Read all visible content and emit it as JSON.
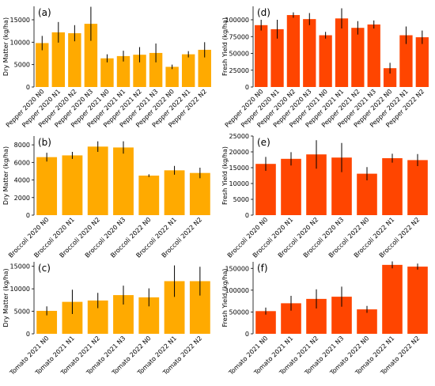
{
  "colors": {
    "dry": "#FFAA00",
    "fresh": "#FF4500",
    "error": "#000000",
    "axis": "#000000"
  },
  "chart_data": [
    {
      "panel": "(a)",
      "type": "bar",
      "ylabel": "Dry Matter (kg/ha)",
      "ylim": [
        0,
        18000
      ],
      "yticks": [
        0,
        5000,
        10000,
        15000
      ],
      "color": "dry",
      "categories": [
        "Pepper 2020 N0",
        "Pepper 2020 N1",
        "Pepper 2020 N2",
        "Pepper 2020 N3",
        "Pepper 2021 N0",
        "Pepper 2021 N1",
        "Pepper 2021 N2",
        "Pepper 2021 N3",
        "Pepper 2022 N0",
        "Pepper 2022 N1",
        "Pepper 2022 N2"
      ],
      "values": [
        9800,
        12200,
        12000,
        14100,
        6400,
        6900,
        7200,
        7600,
        4500,
        7300,
        8300
      ],
      "errors": [
        1600,
        2300,
        1800,
        3800,
        900,
        1200,
        1700,
        2100,
        500,
        700,
        1700
      ]
    },
    {
      "panel": "(d)",
      "type": "bar",
      "ylabel": "Fresh Yield (kg/ha)",
      "ylim": [
        0,
        120000
      ],
      "yticks": [
        0,
        25000,
        50000,
        75000,
        100000
      ],
      "color": "fresh",
      "categories": [
        "Pepper 2020 N0",
        "Pepper 2020 N1",
        "Pepper 2020 N2",
        "Pepper 2020 N3",
        "Pepper 2021 N0",
        "Pepper 2021 N1",
        "Pepper 2021 N2",
        "Pepper 2021 N3",
        "Pepper 2022 N0",
        "Pepper 2022 N1",
        "Pepper 2022 N2"
      ],
      "values": [
        92000,
        86000,
        107000,
        101000,
        77000,
        102000,
        88000,
        93000,
        28000,
        77000,
        74000
      ],
      "errors": [
        8000,
        14000,
        4000,
        9000,
        5000,
        15000,
        10000,
        6000,
        8000,
        13000,
        10000
      ]
    },
    {
      "panel": "(b)",
      "type": "bar",
      "ylabel": "Dry Matter (kg/ha)",
      "ylim": [
        0,
        9000
      ],
      "yticks": [
        0,
        2000,
        4000,
        6000,
        8000
      ],
      "color": "dry",
      "categories": [
        "Broccoli 2020 N0",
        "Broccoli 2020 N1",
        "Broccoli 2020 N2",
        "Broccoli 2020 N3",
        "Broccoli 2022 N0",
        "Broccoli 2022 N1",
        "Broccoli 2022 N2"
      ],
      "values": [
        6600,
        6800,
        7800,
        7700,
        4500,
        5100,
        4800
      ],
      "errors": [
        500,
        400,
        600,
        700,
        150,
        500,
        600
      ]
    },
    {
      "panel": "(e)",
      "type": "bar",
      "ylabel": "Fresh Yield (kg/ha)",
      "ylim": [
        0,
        25000
      ],
      "yticks": [
        0,
        5000,
        10000,
        15000,
        20000,
        25000
      ],
      "color": "fresh",
      "categories": [
        "Broccoli 2020 N0",
        "Broccoli 2020 N1",
        "Broccoli 2020 N2",
        "Broccoli 2020 N3",
        "Broccoli 2022 N0",
        "Broccoli 2022 N1",
        "Broccoli 2022 N2"
      ],
      "values": [
        16200,
        17800,
        19200,
        18200,
        13100,
        18000,
        17400
      ],
      "errors": [
        2200,
        2100,
        4500,
        4600,
        2100,
        1400,
        1900
      ]
    },
    {
      "panel": "(c)",
      "type": "bar",
      "ylabel": "Dry Matter (kg/ha)",
      "ylim": [
        0,
        16000
      ],
      "yticks": [
        0,
        5000,
        10000,
        15000
      ],
      "color": "dry",
      "categories": [
        "Tomato 2021 N0",
        "Tomato 2021 N1",
        "Tomato 2021 N2",
        "Tomato 2021 N3",
        "Tomato 2022 N0",
        "Tomato 2022 N1",
        "Tomato 2022 N2"
      ],
      "values": [
        5100,
        7100,
        7400,
        8600,
        8100,
        11700,
        11700
      ],
      "errors": [
        1000,
        2700,
        1700,
        2100,
        2000,
        3500,
        3200
      ]
    },
    {
      "panel": "(f)",
      "type": "bar",
      "ylabel": "Fresh Yield (kg/ha)",
      "ylim": [
        0,
        165000
      ],
      "yticks": [
        0,
        50000,
        100000,
        150000
      ],
      "color": "fresh",
      "categories": [
        "Tomato 2021 N0",
        "Tomato 2021 N1",
        "Tomato 2021 N2",
        "Tomato 2021 N3",
        "Tomato 2022 N0",
        "Tomato 2022 N1",
        "Tomato 2022 N2"
      ],
      "values": [
        52000,
        70000,
        80000,
        85000,
        56000,
        158000,
        154000
      ],
      "errors": [
        8000,
        17000,
        22000,
        23000,
        8000,
        8000,
        7000
      ]
    }
  ]
}
